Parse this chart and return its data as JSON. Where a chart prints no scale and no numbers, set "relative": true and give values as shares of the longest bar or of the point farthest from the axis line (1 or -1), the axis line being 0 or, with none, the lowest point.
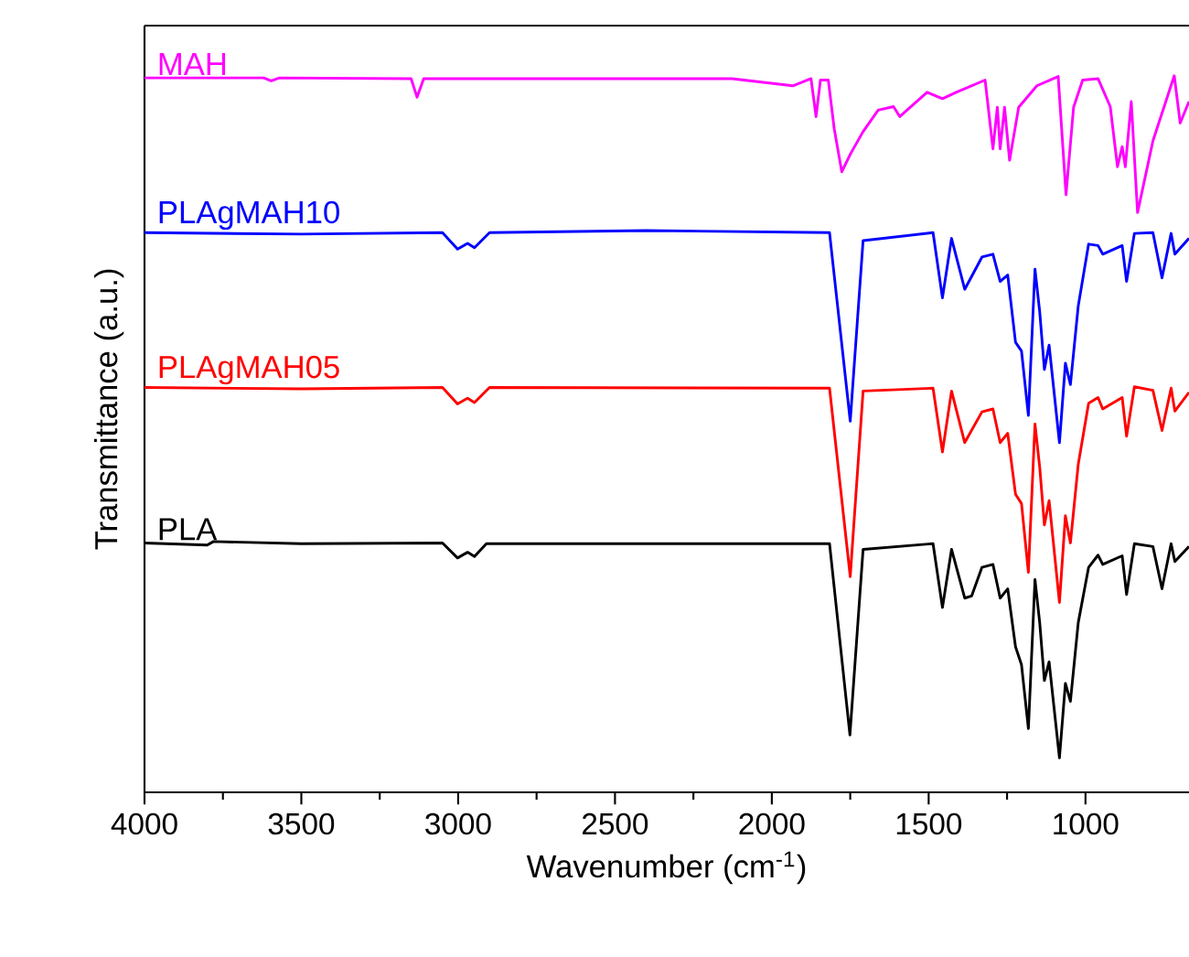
{
  "chart_data": {
    "type": "line",
    "relative": true,
    "xlabel": "Wavenumber (cm$^{-1}$)",
    "ylabel": "Transmittance (a.u.)",
    "xlim": [
      4000,
      670
    ],
    "xticks": [
      4000,
      3500,
      3000,
      2500,
      2000,
      1500,
      1000
    ],
    "legend": false,
    "grid": false,
    "line_style": "solid",
    "series": [
      {
        "name": "MAH",
        "color": "#ff00ff",
        "x": [
          4000,
          3620,
          3596,
          3570,
          3150,
          3131,
          3110,
          2500,
          2127,
          1933,
          1875,
          1859,
          1845,
          1820,
          1801,
          1777,
          1748,
          1709,
          1661,
          1612,
          1592,
          1505,
          1456,
          1412,
          1320,
          1295,
          1281,
          1272,
          1258,
          1242,
          1213,
          1155,
          1087,
          1062,
          1038,
          1009,
          960,
          921,
          898,
          883,
          873,
          854,
          834,
          785,
          717,
          698,
          670
        ],
        "values": [
          0.997,
          0.997,
          0.993,
          0.997,
          0.996,
          0.97,
          0.996,
          0.996,
          0.996,
          0.986,
          0.996,
          0.943,
          0.994,
          0.994,
          0.926,
          0.866,
          0.892,
          0.922,
          0.952,
          0.957,
          0.943,
          0.977,
          0.968,
          0.977,
          0.994,
          0.898,
          0.956,
          0.898,
          0.956,
          0.882,
          0.956,
          0.986,
          0.999,
          0.834,
          0.956,
          0.994,
          0.996,
          0.957,
          0.873,
          0.901,
          0.873,
          0.964,
          0.809,
          0.909,
          1,
          0.934,
          0.964
        ]
      },
      {
        "name": "PLAgMAH10",
        "color": "#0000ff",
        "x": [
          4000,
          3500,
          3050,
          3002,
          2970,
          2948,
          2900,
          2400,
          1816,
          1750,
          1709,
          1486,
          1456,
          1427,
          1385,
          1330,
          1295,
          1272,
          1248,
          1223,
          1204,
          1182,
          1161,
          1146,
          1131,
          1116,
          1083,
          1064,
          1048,
          1023,
          990,
          960,
          945,
          883,
          869,
          844,
          785,
          756,
          727,
          715,
          670
        ],
        "values": [
          0.781,
          0.779,
          0.781,
          0.758,
          0.766,
          0.76,
          0.781,
          0.784,
          0.781,
          0.518,
          0.77,
          0.781,
          0.69,
          0.773,
          0.702,
          0.747,
          0.751,
          0.713,
          0.722,
          0.628,
          0.616,
          0.526,
          0.73,
          0.671,
          0.59,
          0.624,
          0.488,
          0.599,
          0.569,
          0.679,
          0.765,
          0.763,
          0.751,
          0.763,
          0.713,
          0.78,
          0.781,
          0.718,
          0.78,
          0.751,
          0.773
        ]
      },
      {
        "name": "PLAgMAH05",
        "color": "#ff0000",
        "x": [
          4000,
          3500,
          3050,
          3002,
          2970,
          2948,
          2900,
          1816,
          1750,
          1709,
          1486,
          1456,
          1427,
          1385,
          1330,
          1295,
          1272,
          1248,
          1223,
          1204,
          1182,
          1161,
          1146,
          1131,
          1116,
          1083,
          1064,
          1048,
          1023,
          990,
          960,
          945,
          883,
          869,
          844,
          785,
          756,
          727,
          715,
          670
        ],
        "values": [
          0.565,
          0.563,
          0.565,
          0.542,
          0.55,
          0.544,
          0.565,
          0.564,
          0.301,
          0.56,
          0.564,
          0.475,
          0.56,
          0.488,
          0.531,
          0.535,
          0.488,
          0.501,
          0.416,
          0.403,
          0.307,
          0.514,
          0.454,
          0.373,
          0.407,
          0.265,
          0.386,
          0.348,
          0.458,
          0.543,
          0.551,
          0.535,
          0.551,
          0.497,
          0.566,
          0.561,
          0.505,
          0.564,
          0.532,
          0.558
        ]
      },
      {
        "name": "PLA",
        "color": "#000000",
        "x": [
          4000,
          3800,
          3780,
          3500,
          3050,
          3002,
          2970,
          2948,
          2910,
          1816,
          1751,
          1709,
          1486,
          1456,
          1427,
          1385,
          1363,
          1330,
          1295,
          1272,
          1248,
          1223,
          1204,
          1182,
          1161,
          1146,
          1131,
          1116,
          1083,
          1064,
          1048,
          1023,
          990,
          960,
          945,
          883,
          869,
          844,
          785,
          756,
          727,
          715,
          670
        ],
        "values": [
          0.348,
          0.345,
          0.35,
          0.347,
          0.348,
          0.327,
          0.335,
          0.329,
          0.347,
          0.347,
          0.08,
          0.339,
          0.347,
          0.258,
          0.339,
          0.271,
          0.274,
          0.314,
          0.318,
          0.271,
          0.284,
          0.203,
          0.178,
          0.089,
          0.297,
          0.237,
          0.156,
          0.182,
          0.048,
          0.152,
          0.127,
          0.237,
          0.314,
          0.331,
          0.318,
          0.33,
          0.276,
          0.347,
          0.343,
          0.284,
          0.347,
          0.322,
          0.343
        ]
      }
    ]
  }
}
